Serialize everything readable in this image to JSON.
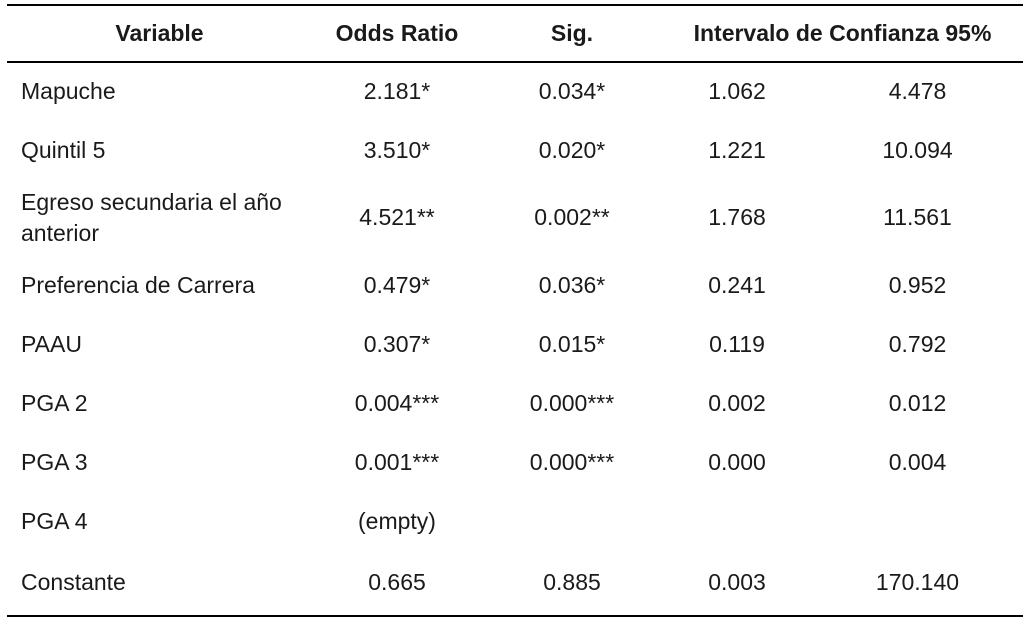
{
  "colors": {
    "background": "#ffffff",
    "text": "#1a1a1a",
    "rule": "#000000"
  },
  "table": {
    "columns": {
      "variable": "Variable",
      "odds_ratio": "Odds Ratio",
      "sig": "Sig.",
      "confidence_interval": "Intervalo de Confianza 95%"
    },
    "rows": [
      {
        "variable": "Mapuche",
        "odds_ratio": "2.181*",
        "sig": "0.034*",
        "ci_lower": "1.062",
        "ci_upper": "4.478"
      },
      {
        "variable": "Quintil 5",
        "odds_ratio": "3.510*",
        "sig": "0.020*",
        "ci_lower": "1.221",
        "ci_upper": "10.094"
      },
      {
        "variable": "Egreso secundaria el año anterior",
        "odds_ratio": "4.521**",
        "sig": "0.002**",
        "ci_lower": "1.768",
        "ci_upper": "11.561"
      },
      {
        "variable": "Preferencia de Carrera",
        "odds_ratio": "0.479*",
        "sig": "0.036*",
        "ci_lower": "0.241",
        "ci_upper": "0.952"
      },
      {
        "variable": "PAAU",
        "odds_ratio": "0.307*",
        "sig": "0.015*",
        "ci_lower": "0.119",
        "ci_upper": "0.792"
      },
      {
        "variable": "PGA 2",
        "odds_ratio": "0.004***",
        "sig": "0.000***",
        "ci_lower": "0.002",
        "ci_upper": "0.012"
      },
      {
        "variable": "PGA 3",
        "odds_ratio": "0.001***",
        "sig": "0.000***",
        "ci_lower": "0.000",
        "ci_upper": "0.004"
      },
      {
        "variable": "PGA 4",
        "odds_ratio": "(empty)",
        "sig": "",
        "ci_lower": "",
        "ci_upper": ""
      },
      {
        "variable": "Constante",
        "odds_ratio": "0.665",
        "sig": "0.885",
        "ci_lower": "0.003",
        "ci_upper": "170.140"
      }
    ]
  }
}
